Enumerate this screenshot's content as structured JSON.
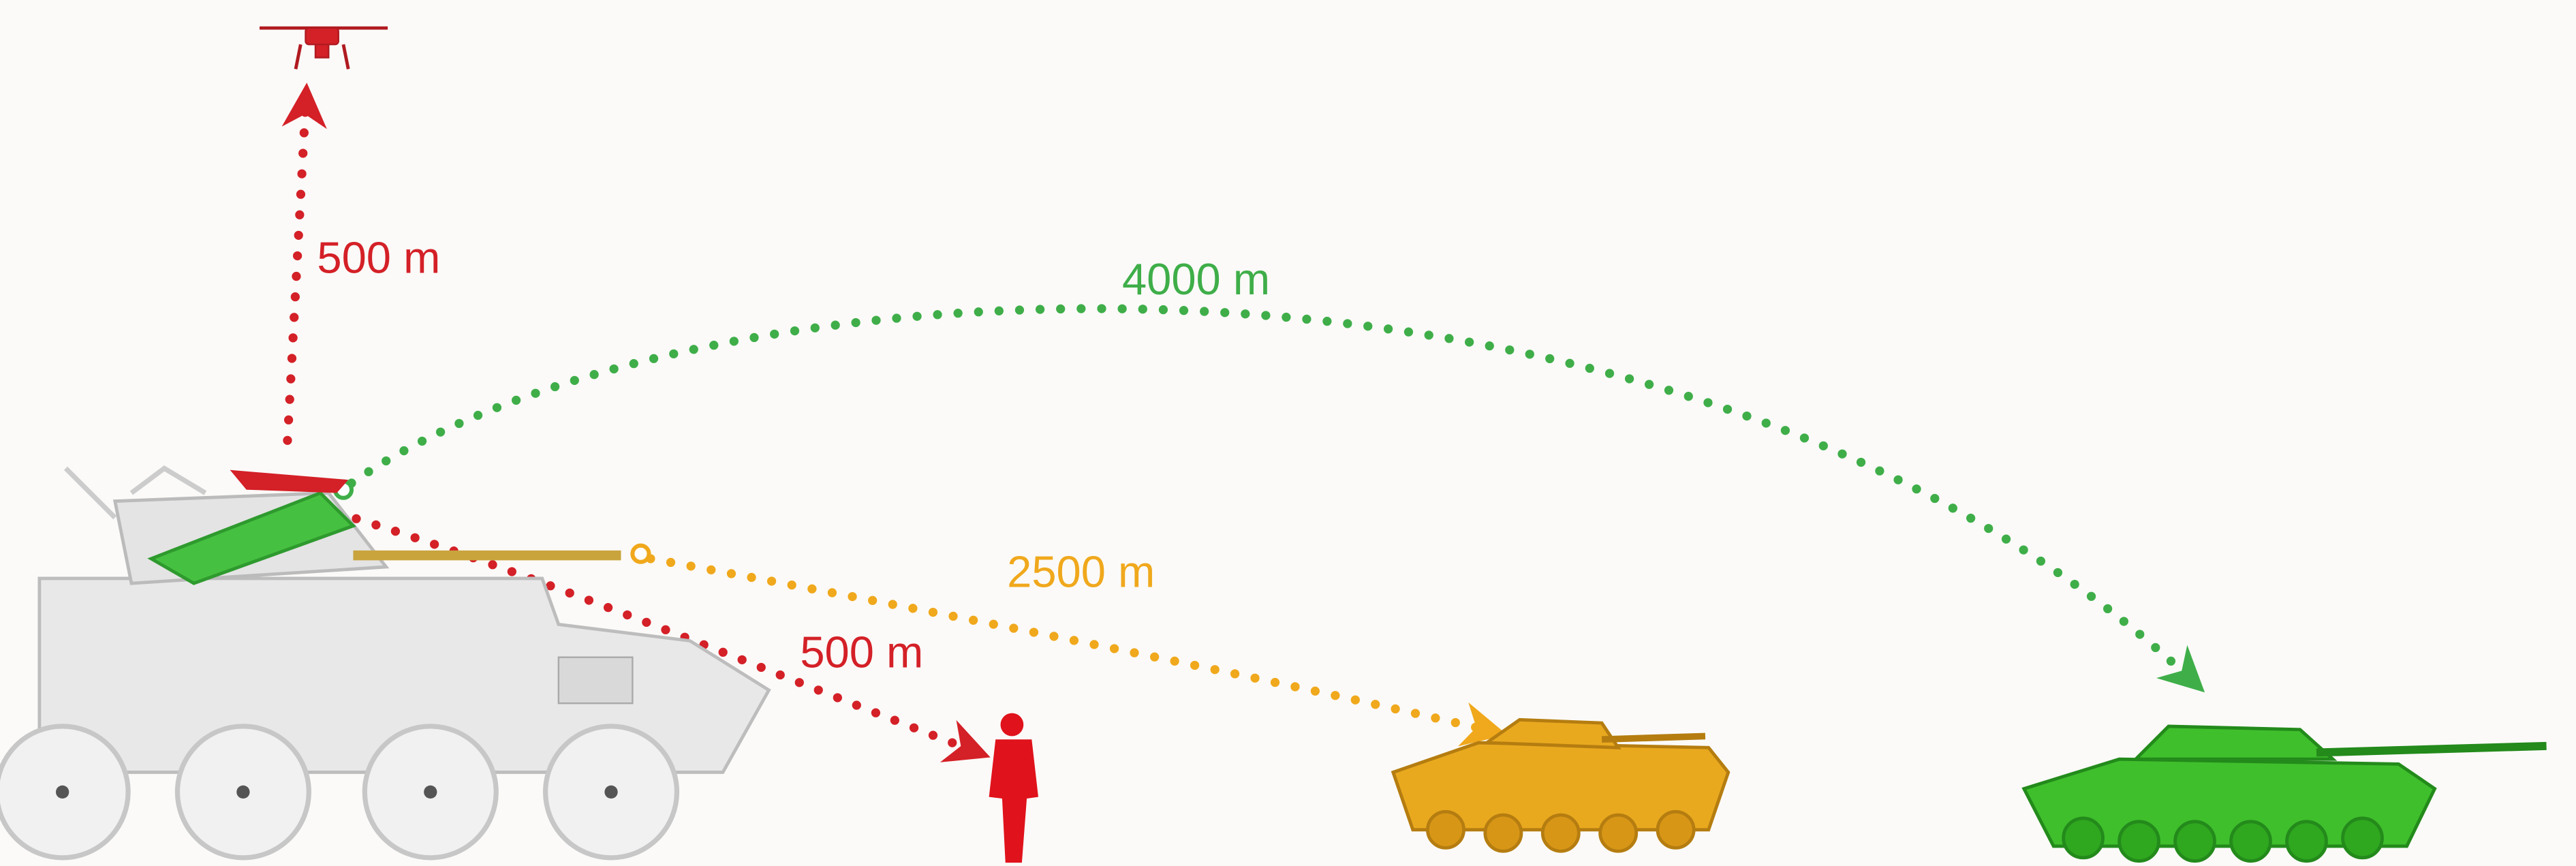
{
  "ranges": [
    "500 m",
    "4000 m",
    "2500 m",
    "500 m"
  ]
}
